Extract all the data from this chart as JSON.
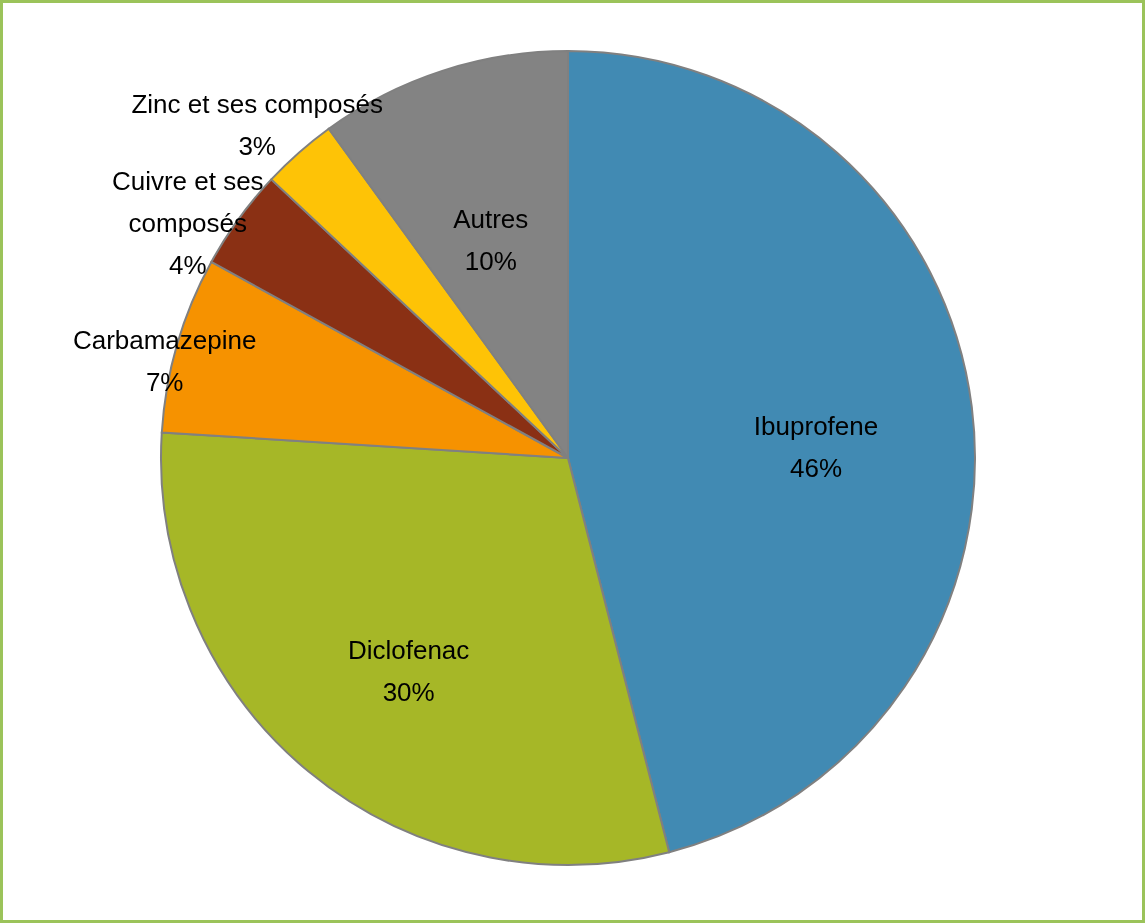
{
  "chart_data": {
    "type": "pie",
    "categories": [
      "Ibuprofene",
      "Diclofenac",
      "Carbamazepine",
      "Cuivre et ses composés",
      "Zinc et ses composés",
      "Autres"
    ],
    "values": [
      46,
      30,
      7,
      4,
      3,
      10
    ],
    "value_labels": [
      "46%",
      "30%",
      "7%",
      "4%",
      "3%",
      "10%"
    ],
    "colors": [
      "#418ab3",
      "#a6b727",
      "#f69200",
      "#8a3014",
      "#fec306",
      "#838383"
    ]
  }
}
